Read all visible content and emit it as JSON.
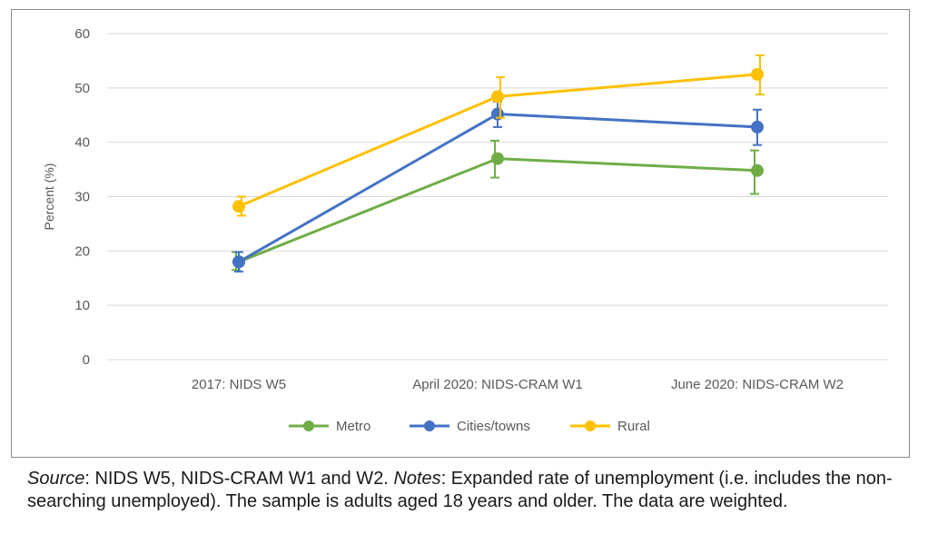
{
  "chart_data": {
    "type": "line",
    "title": "",
    "xlabel": "",
    "ylabel": "Percent (%)",
    "ylim": [
      0,
      60
    ],
    "yticks": [
      0,
      10,
      20,
      30,
      40,
      50,
      60
    ],
    "grid": true,
    "legend_position": "bottom",
    "categories": [
      "2017: NIDS W5",
      "April 2020: NIDS-CRAM W1",
      "June 2020: NIDS-CRAM W2"
    ],
    "series": [
      {
        "name": "Metro",
        "color": "#70ad47",
        "values": [
          18.0,
          37.0,
          34.8
        ],
        "error_low": [
          16.5,
          33.5,
          30.5
        ],
        "error_high": [
          19.8,
          40.3,
          38.5
        ]
      },
      {
        "name": "Cities/towns",
        "color": "#4472c4",
        "values": [
          18.0,
          45.2,
          42.8
        ],
        "error_low": [
          16.2,
          42.8,
          39.5
        ],
        "error_high": [
          19.8,
          47.5,
          46.0
        ]
      },
      {
        "name": "Rural",
        "color": "#ffc000",
        "values": [
          28.2,
          48.4,
          52.5
        ],
        "error_low": [
          26.5,
          44.5,
          48.8
        ],
        "error_high": [
          30.0,
          52.0,
          56.0
        ]
      }
    ]
  },
  "caption": {
    "source_label": "Source",
    "source_text": ": NIDS W5, NIDS-CRAM W1 and W2.  ",
    "notes_label": "Notes",
    "notes_text": ": Expanded rate of unemployment (i.e. includes the non-searching unemployed). The sample is adults aged 18 years and older. The data are weighted."
  }
}
